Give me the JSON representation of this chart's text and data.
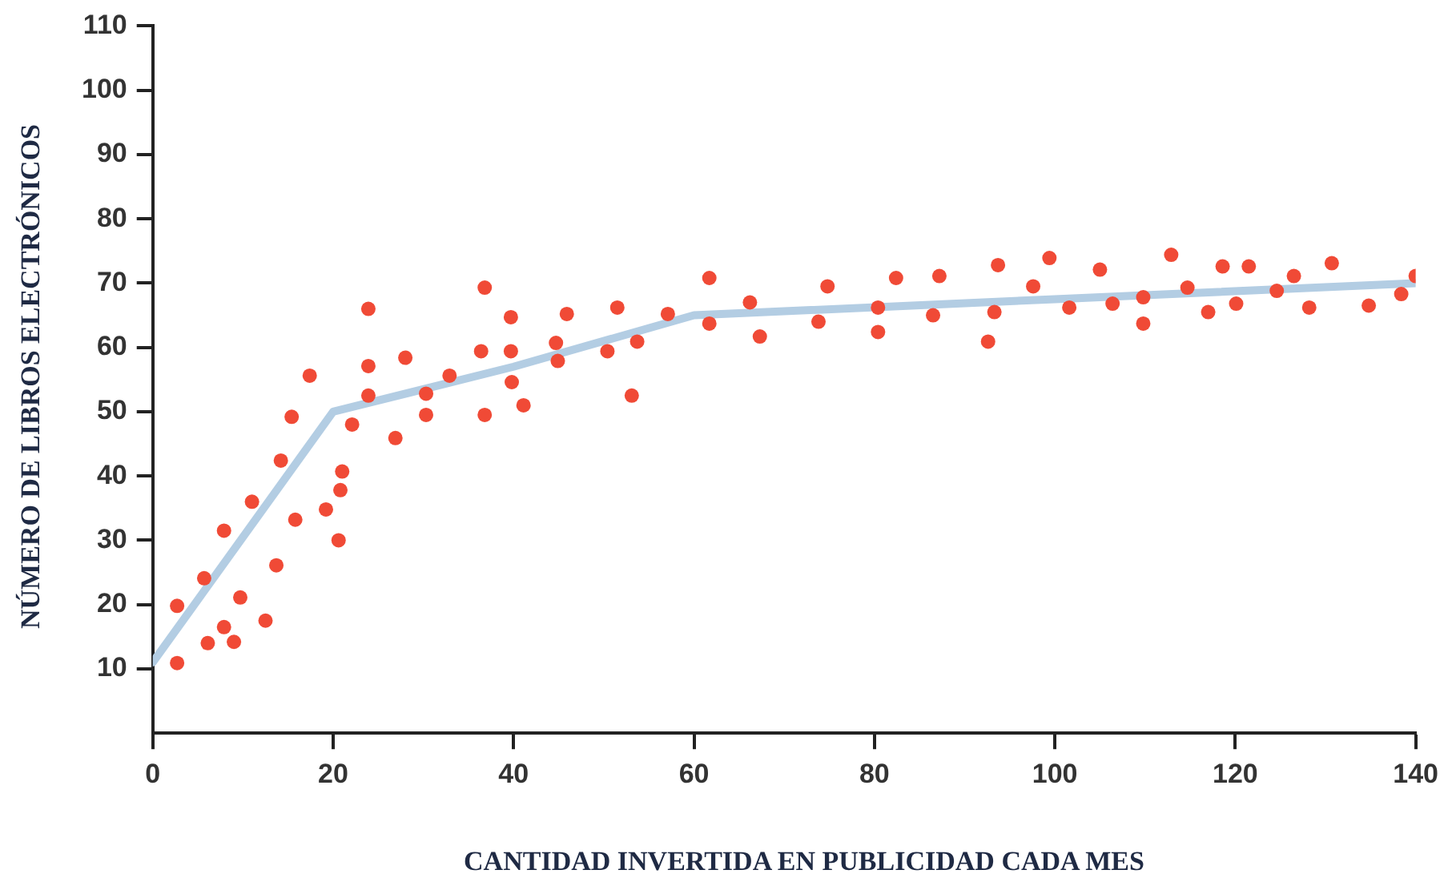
{
  "chart_data": {
    "type": "scatter",
    "xlabel": "CANTIDAD INVERTIDA EN PUBLICIDAD CADA MES",
    "ylabel": "NÚMERO DE LIBROS ELECTRÓNICOS",
    "xlim": [
      0,
      140
    ],
    "xticks": [
      0,
      20,
      40,
      60,
      80,
      100,
      120,
      140
    ],
    "ylim": [
      0,
      110
    ],
    "yticks": [
      10,
      20,
      30,
      40,
      50,
      60,
      70,
      80,
      90,
      100,
      110
    ],
    "grid": false,
    "legend": false,
    "marker": "circle",
    "series": [
      {
        "color": "#f04a36",
        "x": [
          2.7,
          2.7,
          5.7,
          6.1,
          7.9,
          9.0,
          7.9,
          9.7,
          11,
          12.5,
          13.7,
          14.2,
          15.8,
          15.4,
          17.4,
          19.2,
          20.6,
          20.8,
          21,
          22.1,
          23.9,
          23.9,
          23.9,
          26.9,
          28,
          30.3,
          30.3,
          32.9,
          36.8,
          36.4,
          36.8,
          39.7,
          39.7,
          39.8,
          41.1,
          45.9,
          44.7,
          44.9,
          51.5,
          50.4,
          53.7,
          53.1,
          57.1,
          61.7,
          61.7,
          66.2,
          67.3,
          74.8,
          73.8,
          80.4,
          80.4,
          82.4,
          87.2,
          86.5,
          93.7,
          93.3,
          92.6,
          99.4,
          97.6,
          101.6,
          105,
          106.4,
          109.8,
          109.8,
          112.9,
          114.7,
          117,
          118.6,
          120.1,
          121.5,
          124.6,
          126.5,
          128.2,
          130.7,
          134.8,
          138.4,
          140
        ],
        "values": [
          19.8,
          10.9,
          24.1,
          14,
          16.5,
          14.2,
          31.5,
          21.1,
          36,
          17.5,
          26.1,
          42.4,
          33.2,
          49.2,
          55.6,
          34.8,
          30,
          37.8,
          40.7,
          48,
          66,
          57.1,
          52.5,
          45.9,
          58.4,
          52.8,
          49.5,
          55.6,
          69.3,
          59.4,
          49.5,
          64.7,
          59.4,
          54.6,
          51,
          65.2,
          60.7,
          57.9,
          66.2,
          59.4,
          60.9,
          52.5,
          65.2,
          70.8,
          63.7,
          67,
          61.7,
          69.5,
          64,
          66.2,
          62.4,
          70.8,
          71.1,
          65,
          72.8,
          65.5,
          60.9,
          73.9,
          69.5,
          66.2,
          72.1,
          66.8,
          67.8,
          63.7,
          74.4,
          69.3,
          65.5,
          72.6,
          66.8,
          72.6,
          68.8,
          71.1,
          66.2,
          73.1,
          66.5,
          68.3,
          71.1
        ]
      },
      {
        "type": "line",
        "color": "#b3cde3",
        "marker": "none",
        "x": [
          0,
          20,
          40,
          60,
          100,
          140
        ],
        "values": [
          11,
          50,
          57,
          65,
          67.5,
          70
        ]
      }
    ]
  }
}
